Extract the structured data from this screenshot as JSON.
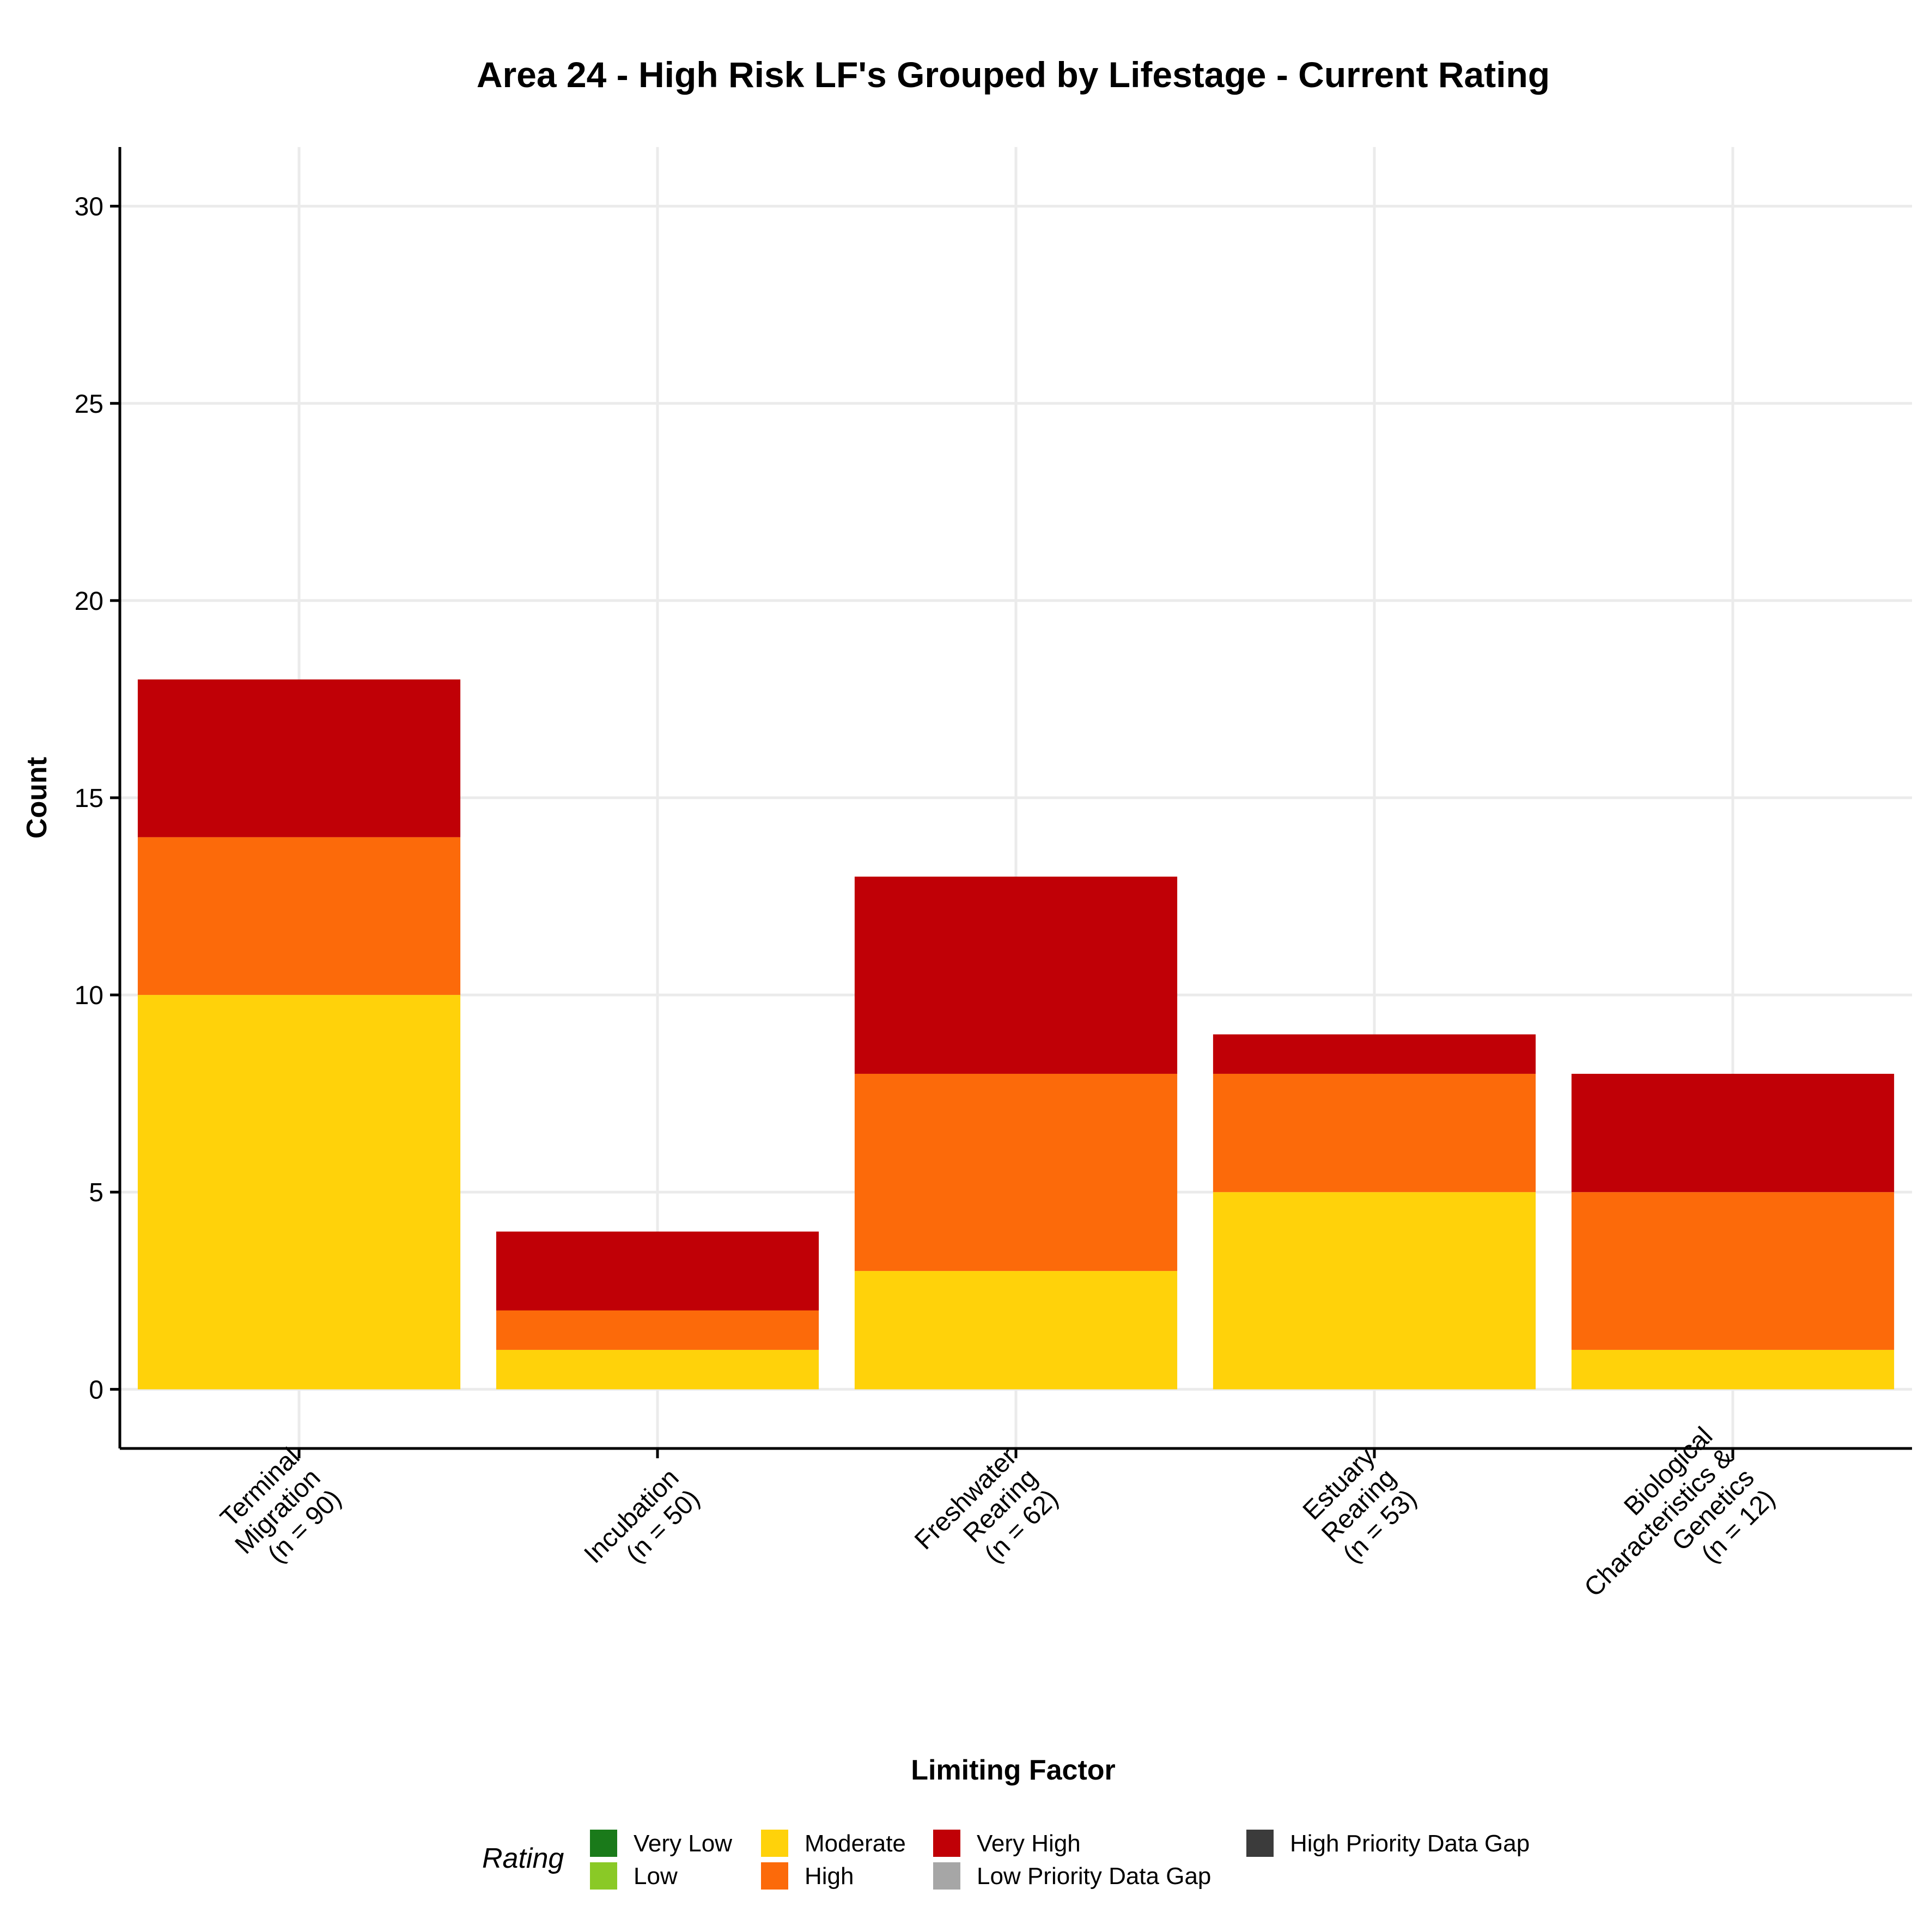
{
  "chart_data": {
    "type": "bar",
    "stacked": true,
    "title": "Area 24 - High Risk LF's Grouped by Lifestage - Current Rating",
    "xlabel": "Limiting Factor",
    "ylabel": "Count",
    "ylim": [
      -1.5,
      31.5
    ],
    "yticks": [
      0,
      5,
      10,
      15,
      20,
      25,
      30
    ],
    "grid": true,
    "categories": [
      [
        "Terminal",
        "Migration",
        "(n = 90)"
      ],
      [
        "Incubation",
        "(n = 50)"
      ],
      [
        "Freshwater",
        "Rearing",
        "(n = 62)"
      ],
      [
        "Estuary",
        "Rearing",
        "(n = 53)"
      ],
      [
        "Biological",
        "Characteristics &",
        "Genetics",
        "(n = 12)"
      ]
    ],
    "series": [
      {
        "name": "Very Low",
        "color": "#1a7a1a",
        "values": [
          0,
          0,
          0,
          0,
          0
        ]
      },
      {
        "name": "Low",
        "color": "#8ac926",
        "values": [
          0,
          0,
          0,
          0,
          0
        ]
      },
      {
        "name": "Moderate",
        "color": "#ffd20a",
        "values": [
          10,
          1,
          3,
          5,
          1
        ]
      },
      {
        "name": "High",
        "color": "#fc6a0a",
        "values": [
          4,
          1,
          5,
          3,
          4
        ]
      },
      {
        "name": "Very High",
        "color": "#c00006",
        "values": [
          4,
          2,
          5,
          1,
          3
        ]
      },
      {
        "name": "Low Priority Data Gap",
        "color": "#a6a6a6",
        "values": [
          0,
          0,
          0,
          0,
          0
        ]
      },
      {
        "name": "High Priority Data Gap",
        "color": "#3b3b3b",
        "values": [
          0,
          0,
          0,
          0,
          0
        ]
      }
    ],
    "legend": {
      "title": "Rating",
      "position": "bottom"
    }
  }
}
